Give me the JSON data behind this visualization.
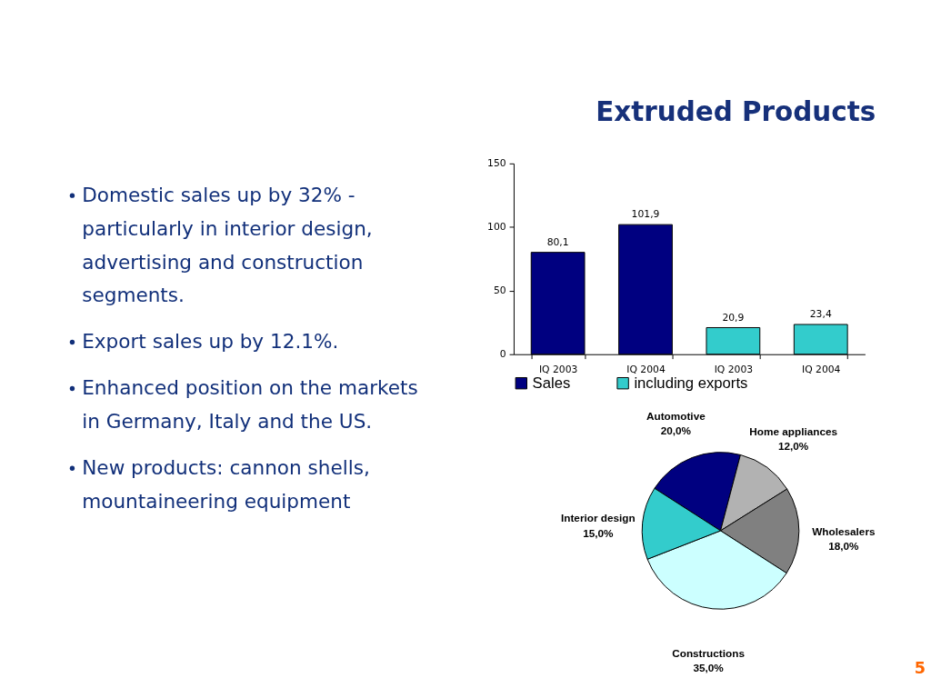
{
  "chart_data": [
    {
      "type": "other",
      "title": "Extruded Products",
      "annotations": [
        "Domestic sales up by 32% - particularly in interior design, advertising and construction segments.",
        "Export sales up by 12.1%.",
        "Enhanced position on the markets in Germany, Italy and the US.",
        "New products: cannon shells, mountaineering equipment"
      ]
    },
    {
      "type": "bar",
      "categories": [
        "IQ 2003",
        "IQ 2004",
        "IQ 2003",
        "IQ 2004"
      ],
      "series": [
        {
          "name": "Sales",
          "color": "#000080",
          "values": [
            80.1,
            101.9,
            null,
            null
          ],
          "value_labels": [
            "80,1",
            "101,9",
            null,
            null
          ]
        },
        {
          "name": "including exports",
          "color": "#33cccc",
          "values": [
            null,
            null,
            20.9,
            23.4
          ],
          "value_labels": [
            null,
            null,
            "20,9",
            "23,4"
          ]
        }
      ],
      "ylim": [
        0,
        150
      ],
      "yticks": [
        0,
        50,
        100,
        150
      ],
      "legend": "bottom"
    },
    {
      "type": "pie",
      "categories": [
        "Automotive",
        "Home appliances",
        "Wholesalers",
        "Constructions",
        "Interior design"
      ],
      "values": [
        20,
        12,
        18,
        35,
        15
      ],
      "value_labels": [
        "20,0%",
        "12,0%",
        "18,0%",
        "35,0%",
        "15,0%"
      ],
      "colors": [
        "#000080",
        "#b2b2b2",
        "#808080",
        "#ccffff",
        "#33cccc"
      ],
      "annotations": [
        "5"
      ]
    }
  ]
}
